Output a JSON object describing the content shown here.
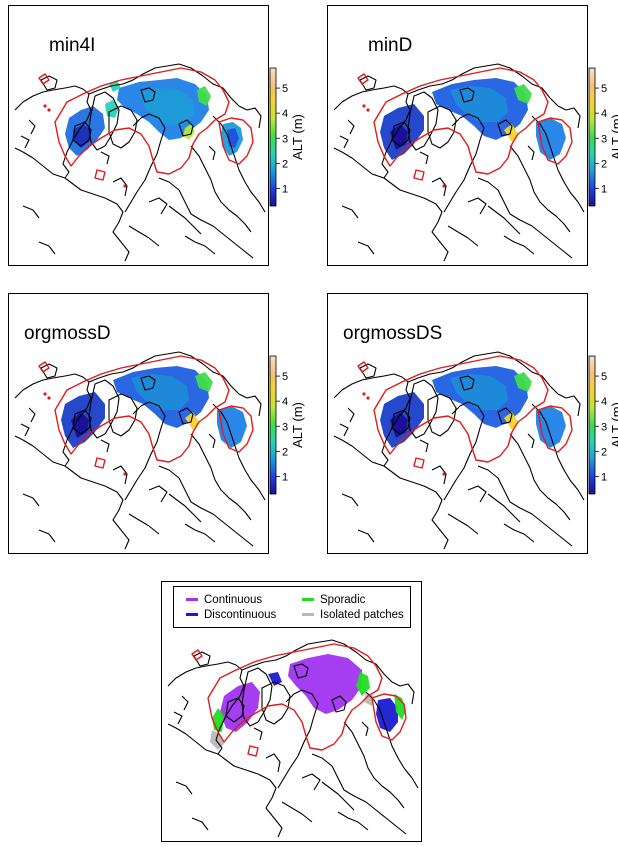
{
  "panels": [
    {
      "title": "min4I"
    },
    {
      "title": "minD"
    },
    {
      "title": "orgmossD"
    },
    {
      "title": "orgmossDS"
    }
  ],
  "colorbar": {
    "label": "ALT (m)",
    "ticks": [
      1,
      2,
      3,
      4,
      5
    ],
    "range": [
      0.3,
      5.8
    ],
    "colors": [
      "#1a0f96",
      "#1f3fe0",
      "#1e9bd8",
      "#28d2b4",
      "#3fdc4a",
      "#b9e63a",
      "#f2d431",
      "#f4c07a",
      "#f6e3c4"
    ]
  },
  "legend": {
    "items": [
      {
        "label": "Continuous",
        "color": "#a034f0"
      },
      {
        "label": "Sporadic",
        "color": "#22dd22"
      },
      {
        "label": "Discontinuous",
        "color": "#1a1ad0"
      },
      {
        "label": "Isolated patches",
        "color": "#b8b8b8"
      }
    ]
  },
  "chart_data": [
    {
      "type": "heatmap",
      "title": "min4I",
      "colorbar_label": "ALT (m)",
      "colorbar_ticks": [
        1,
        2,
        3,
        4,
        5
      ],
      "colorbar_range": [
        0.3,
        5.8
      ]
    },
    {
      "type": "heatmap",
      "title": "minD",
      "colorbar_label": "ALT (m)",
      "colorbar_ticks": [
        1,
        2,
        3,
        4,
        5
      ],
      "colorbar_range": [
        0.3,
        5.8
      ]
    },
    {
      "type": "heatmap",
      "title": "orgmossD",
      "colorbar_label": "ALT (m)",
      "colorbar_ticks": [
        1,
        2,
        3,
        4,
        5
      ],
      "colorbar_range": [
        0.3,
        5.8
      ]
    },
    {
      "type": "heatmap",
      "title": "orgmossDS",
      "colorbar_label": "ALT (m)",
      "colorbar_ticks": [
        1,
        2,
        3,
        4,
        5
      ],
      "colorbar_range": [
        0.3,
        5.8
      ]
    },
    {
      "type": "heatmap",
      "legend": [
        "Continuous",
        "Sporadic",
        "Discontinuous",
        "Isolated patches"
      ]
    }
  ]
}
